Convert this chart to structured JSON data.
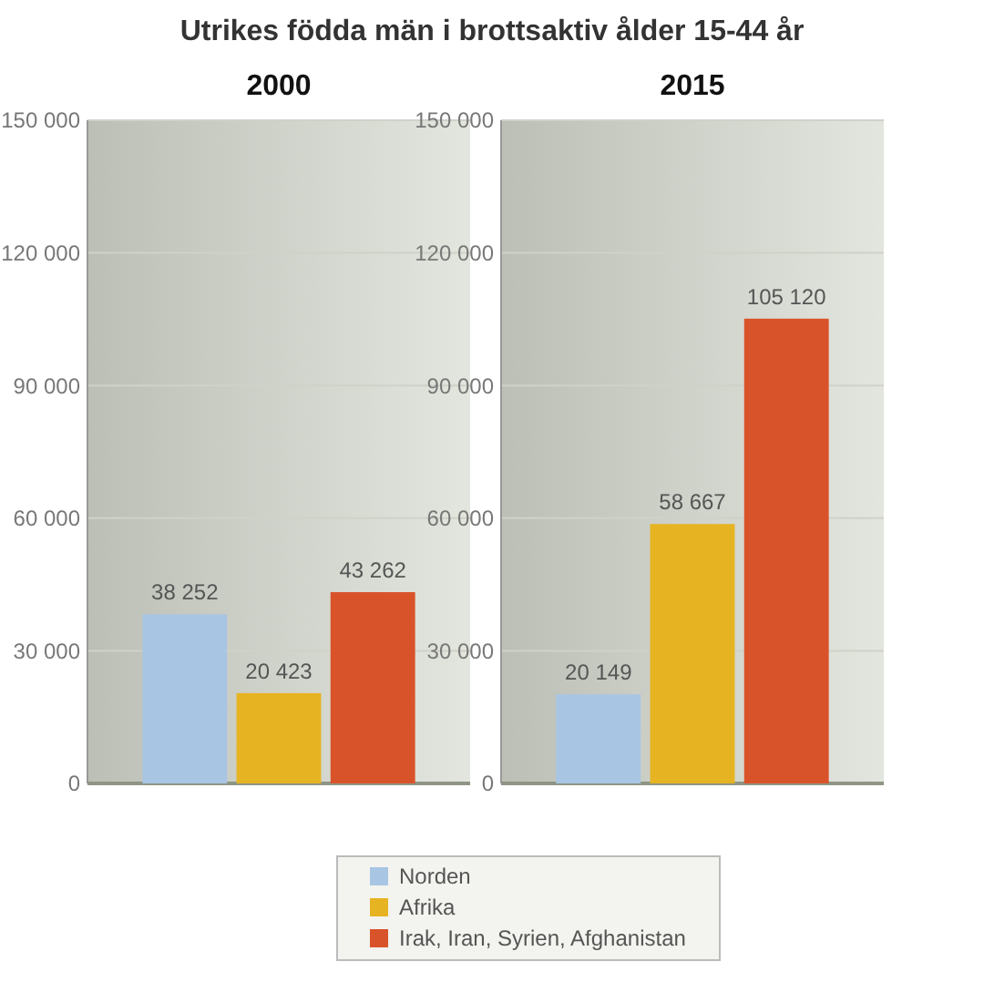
{
  "chart_data": [
    {
      "type": "bar",
      "title": "Utrikes födda män i brottsaktiv ålder 15-44 år",
      "subtitle": "2000",
      "categories": [
        null
      ],
      "series": [
        {
          "name": "Norden",
          "color": "#a8c6e4",
          "values": [
            38252
          ]
        },
        {
          "name": "Afrika",
          "color": "#e6b422",
          "values": [
            20423
          ]
        },
        {
          "name": "Irak, Iran, Syrien, Afghanistan",
          "color": "#d9532a",
          "values": [
            43262
          ]
        }
      ],
      "ylim": [
        0,
        150000
      ],
      "yticks": [
        {
          "value": 0,
          "label": "0"
        },
        {
          "value": 30000,
          "label": "30 000"
        },
        {
          "value": 60000,
          "label": "60 000"
        },
        {
          "value": 90000,
          "label": "90 000"
        },
        {
          "value": 120000,
          "label": "120 000"
        },
        {
          "value": 150000,
          "label": "150 000"
        }
      ],
      "grid": "y",
      "legend": "bottom",
      "data_labels": true
    },
    {
      "type": "bar",
      "title": "2015",
      "categories": [
        null
      ],
      "series": [
        {
          "color": "#a8c6e4",
          "values": [
            20149
          ]
        },
        {
          "color": "#e6b422",
          "values": [
            58667
          ]
        },
        {
          "color": "#d9532a",
          "values": [
            105120
          ]
        }
      ],
      "ylim": [
        0,
        150000
      ],
      "yticks": [
        {
          "value": 0,
          "label": "0"
        },
        {
          "value": 30000,
          "label": "30 000"
        },
        {
          "value": 60000,
          "label": "60 000"
        },
        {
          "value": 90000,
          "label": "90 000"
        },
        {
          "value": 120000,
          "label": "120 000"
        },
        {
          "value": 150000,
          "label": "150 000"
        }
      ],
      "grid": "y",
      "data_labels": true
    }
  ]
}
